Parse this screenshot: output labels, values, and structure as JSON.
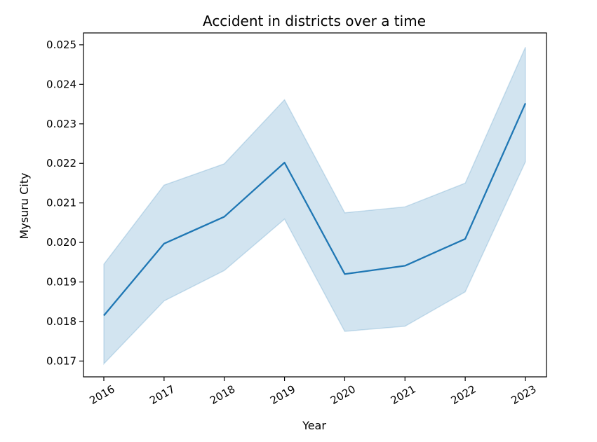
{
  "chart_data": {
    "type": "line",
    "title": "Accident in districts over a time",
    "xlabel": "Year",
    "ylabel": "Mysuru City",
    "x": [
      "2016",
      "2017",
      "2018",
      "2019",
      "2020",
      "2021",
      "2022",
      "2023"
    ],
    "series": [
      {
        "values": [
          0.01815,
          0.01997,
          0.02065,
          0.02202,
          0.0192,
          0.01941,
          0.02009,
          0.02352
        ],
        "ci_lower": [
          0.01693,
          0.01852,
          0.01929,
          0.02059,
          0.01775,
          0.01788,
          0.01875,
          0.02204
        ],
        "ci_upper": [
          0.01945,
          0.02145,
          0.02199,
          0.02361,
          0.02075,
          0.0209,
          0.0215,
          0.02494
        ],
        "color": "#1f77b4",
        "band_color": "#1f77b4"
      }
    ],
    "yticks": [
      "0.017",
      "0.018",
      "0.019",
      "0.020",
      "0.021",
      "0.022",
      "0.023",
      "0.024",
      "0.025"
    ],
    "ylim": [
      0.0166,
      0.0253
    ],
    "grid": false
  }
}
